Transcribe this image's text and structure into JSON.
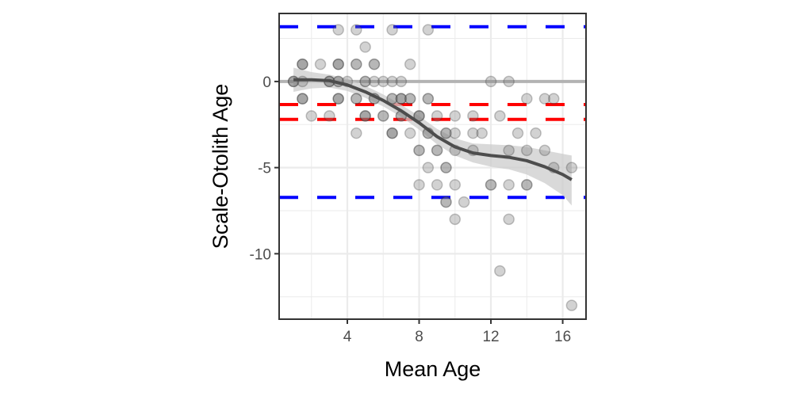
{
  "chart_data": {
    "type": "scatter",
    "title": "",
    "xlabel": "Mean Age",
    "ylabel": "Scale-Otolith Age",
    "xlim": [
      0.2,
      17.3
    ],
    "ylim": [
      -13.8,
      3.95
    ],
    "x_ticks": [
      4,
      8,
      12,
      16
    ],
    "x_tick_labels": [
      "4",
      "8",
      "12",
      "16"
    ],
    "y_ticks": [
      0,
      -5,
      -10
    ],
    "y_tick_labels": [
      "0",
      "-5",
      "-10"
    ],
    "x_minor_grid": [
      2,
      6,
      10,
      14
    ],
    "y_minor_grid": [
      2.5,
      -2.5,
      -7.5,
      -12.5
    ],
    "grid": true,
    "legend": "none",
    "reference_lines": [
      {
        "name": "zero-line",
        "y": 0,
        "color": "#b3b3b3",
        "style": "solid"
      },
      {
        "name": "mean-bias-upper",
        "y": -1.34,
        "color": "#ff0000",
        "style": "dashed"
      },
      {
        "name": "mean-bias-lower",
        "y": -2.2,
        "color": "#ff0000",
        "style": "dashed"
      },
      {
        "name": "upper-limit",
        "y": 3.18,
        "color": "#0000ff",
        "style": "dashed"
      },
      {
        "name": "lower-limit",
        "y": -6.73,
        "color": "#0000ff",
        "style": "dashed"
      }
    ],
    "point_color": "#808080",
    "smooth_color": "#4d4d4d",
    "band_color": "#cccccc",
    "points": [
      {
        "x": 3.5,
        "y": 3,
        "n": 1
      },
      {
        "x": 4.5,
        "y": 3,
        "n": 1
      },
      {
        "x": 6.5,
        "y": 3,
        "n": 1
      },
      {
        "x": 8.5,
        "y": 3,
        "n": 1
      },
      {
        "x": 5,
        "y": 2,
        "n": 1
      },
      {
        "x": 1.5,
        "y": 1,
        "n": 3
      },
      {
        "x": 2.5,
        "y": 1,
        "n": 1
      },
      {
        "x": 3.5,
        "y": 1,
        "n": 3
      },
      {
        "x": 4.5,
        "y": 1,
        "n": 2
      },
      {
        "x": 5.5,
        "y": 1,
        "n": 2
      },
      {
        "x": 7.5,
        "y": 1,
        "n": 1
      },
      {
        "x": 1,
        "y": 0,
        "n": 3
      },
      {
        "x": 1.5,
        "y": 0,
        "n": 1
      },
      {
        "x": 3,
        "y": 0,
        "n": 3
      },
      {
        "x": 3.5,
        "y": 0,
        "n": 2
      },
      {
        "x": 4,
        "y": 0,
        "n": 1
      },
      {
        "x": 5,
        "y": 0,
        "n": 2
      },
      {
        "x": 5.5,
        "y": 0,
        "n": 1
      },
      {
        "x": 6,
        "y": 0,
        "n": 1
      },
      {
        "x": 6.5,
        "y": 0,
        "n": 1
      },
      {
        "x": 7,
        "y": 0,
        "n": 1
      },
      {
        "x": 12,
        "y": 0,
        "n": 1
      },
      {
        "x": 13,
        "y": 0,
        "n": 1
      },
      {
        "x": 1.5,
        "y": -1,
        "n": 3
      },
      {
        "x": 3.5,
        "y": -1,
        "n": 3
      },
      {
        "x": 4.5,
        "y": -1,
        "n": 2
      },
      {
        "x": 5.5,
        "y": -1,
        "n": 2
      },
      {
        "x": 6.5,
        "y": -1,
        "n": 2
      },
      {
        "x": 7,
        "y": -1,
        "n": 3
      },
      {
        "x": 7.5,
        "y": -1,
        "n": 2
      },
      {
        "x": 8.5,
        "y": -1,
        "n": 2
      },
      {
        "x": 14,
        "y": -1,
        "n": 1
      },
      {
        "x": 15,
        "y": -1,
        "n": 1
      },
      {
        "x": 15.5,
        "y": -1,
        "n": 1
      },
      {
        "x": 2,
        "y": -2,
        "n": 1
      },
      {
        "x": 3,
        "y": -2,
        "n": 1
      },
      {
        "x": 5,
        "y": -2,
        "n": 3
      },
      {
        "x": 6,
        "y": -2,
        "n": 2
      },
      {
        "x": 7,
        "y": -2,
        "n": 2
      },
      {
        "x": 8,
        "y": -2,
        "n": 3
      },
      {
        "x": 9,
        "y": -2,
        "n": 1
      },
      {
        "x": 10,
        "y": -2,
        "n": 1
      },
      {
        "x": 11,
        "y": -2,
        "n": 1
      },
      {
        "x": 12.5,
        "y": -2,
        "n": 1
      },
      {
        "x": 4.5,
        "y": -3,
        "n": 1
      },
      {
        "x": 6.5,
        "y": -3,
        "n": 3
      },
      {
        "x": 7.5,
        "y": -3,
        "n": 1
      },
      {
        "x": 8.5,
        "y": -3,
        "n": 2
      },
      {
        "x": 9.5,
        "y": -3,
        "n": 2
      },
      {
        "x": 10,
        "y": -3,
        "n": 1
      },
      {
        "x": 11,
        "y": -3,
        "n": 1
      },
      {
        "x": 11.5,
        "y": -3,
        "n": 1
      },
      {
        "x": 13.5,
        "y": -3,
        "n": 1
      },
      {
        "x": 14.5,
        "y": -3,
        "n": 1
      },
      {
        "x": 8,
        "y": -4,
        "n": 2
      },
      {
        "x": 9,
        "y": -4,
        "n": 2
      },
      {
        "x": 10,
        "y": -4,
        "n": 1
      },
      {
        "x": 11,
        "y": -4,
        "n": 1
      },
      {
        "x": 13,
        "y": -4,
        "n": 1
      },
      {
        "x": 14,
        "y": -4,
        "n": 1
      },
      {
        "x": 15,
        "y": -4,
        "n": 1
      },
      {
        "x": 8.5,
        "y": -5,
        "n": 1
      },
      {
        "x": 9.5,
        "y": -5,
        "n": 2
      },
      {
        "x": 15.5,
        "y": -5,
        "n": 1
      },
      {
        "x": 16.5,
        "y": -5,
        "n": 1
      },
      {
        "x": 8,
        "y": -6,
        "n": 1
      },
      {
        "x": 9,
        "y": -6,
        "n": 1
      },
      {
        "x": 10,
        "y": -6,
        "n": 1
      },
      {
        "x": 12,
        "y": -6,
        "n": 2
      },
      {
        "x": 13,
        "y": -6,
        "n": 1
      },
      {
        "x": 14,
        "y": -6,
        "n": 2
      },
      {
        "x": 9.5,
        "y": -7,
        "n": 2
      },
      {
        "x": 10.5,
        "y": -7,
        "n": 1
      },
      {
        "x": 10,
        "y": -8,
        "n": 1
      },
      {
        "x": 13,
        "y": -8,
        "n": 1
      },
      {
        "x": 12.5,
        "y": -11,
        "n": 1
      },
      {
        "x": 16.5,
        "y": -13,
        "n": 1
      }
    ],
    "smooth": {
      "x": [
        1,
        2,
        3,
        4,
        5,
        6,
        7,
        8,
        9,
        10,
        11,
        12,
        13,
        14,
        15,
        16,
        16.5
      ],
      "y": [
        0.1,
        0.1,
        0.05,
        -0.2,
        -0.6,
        -1.1,
        -1.7,
        -2.4,
        -3.2,
        -3.8,
        -4.15,
        -4.3,
        -4.4,
        -4.6,
        -4.95,
        -5.4,
        -5.7
      ],
      "lower": [
        -0.6,
        -0.4,
        -0.35,
        -0.55,
        -0.95,
        -1.45,
        -2.05,
        -2.8,
        -3.65,
        -4.3,
        -4.7,
        -4.95,
        -5.1,
        -5.4,
        -5.9,
        -6.6,
        -7.2
      ],
      "upper": [
        0.8,
        0.55,
        0.4,
        0.15,
        -0.25,
        -0.75,
        -1.35,
        -2.0,
        -2.75,
        -3.3,
        -3.6,
        -3.65,
        -3.7,
        -3.8,
        -4.0,
        -4.2,
        -4.3
      ]
    }
  }
}
